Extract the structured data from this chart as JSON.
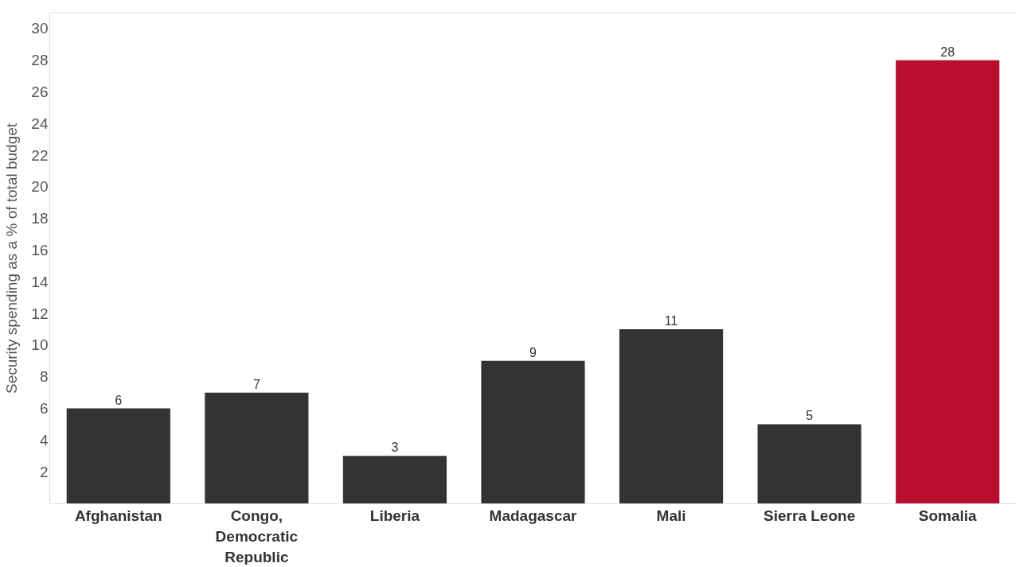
{
  "chart_data": {
    "type": "bar",
    "ylabel": "Security spending as a % of total budget",
    "categories": [
      "Afghanistan",
      "Congo, Democratic Republic",
      "Liberia",
      "Madagascar",
      "Mali",
      "Sierra Leone",
      "Somalia"
    ],
    "values": [
      6,
      7,
      3,
      9,
      11,
      5,
      28
    ],
    "colors": [
      "#333333",
      "#333333",
      "#333333",
      "#333333",
      "#333333",
      "#333333",
      "#b90e2e"
    ],
    "ylim": [
      0,
      31
    ],
    "yticks": [
      2,
      4,
      6,
      8,
      10,
      12,
      14,
      16,
      18,
      20,
      22,
      24,
      26,
      28,
      30
    ],
    "grid": false,
    "data_labels": true
  }
}
